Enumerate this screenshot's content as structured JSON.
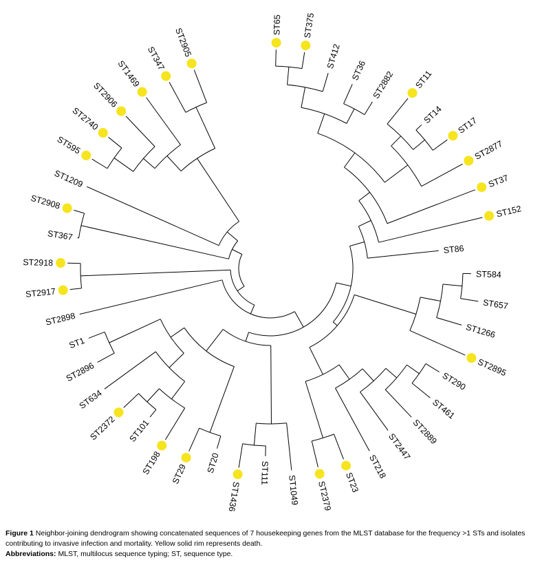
{
  "figure": {
    "caption_label": "Figure 1",
    "caption_text": "Neighbor-joining dendrogram showing concatenated sequences of 7 housekeeping genes from the MLST database for the frequency >1 STs and isolates contributing to invasive infection and mortality. Yellow solid rim represents death.",
    "abbreviations_label": "Abbreviations:",
    "abbreviations_text": "MLST, multilocus sequence typing; ST, sequence type."
  },
  "chart_data": {
    "type": "radial-dendrogram",
    "title": "Neighbor-joining dendrogram of MLST sequence types",
    "legend": {
      "yellow_dot": "death"
    },
    "colors": {
      "death_dot": "#f6e41e",
      "branch": "#000000",
      "label": "#000000"
    },
    "leaf_count": 46,
    "leaves": [
      {
        "label": "ST65",
        "r": 318,
        "death": true
      },
      {
        "label": "ST375",
        "r": 318,
        "death": true
      },
      {
        "label": "ST412",
        "r": 296,
        "death": false
      },
      {
        "label": "ST36",
        "r": 293,
        "death": false
      },
      {
        "label": "ST2882",
        "r": 284,
        "death": false
      },
      {
        "label": "ST11",
        "r": 318,
        "death": true
      },
      {
        "label": "ST14",
        "r": 303,
        "death": false
      },
      {
        "label": "ST17",
        "r": 318,
        "death": true
      },
      {
        "label": "ST2877",
        "r": 318,
        "death": true
      },
      {
        "label": "ST37",
        "r": 319,
        "death": true
      },
      {
        "label": "ST152",
        "r": 317,
        "death": true
      },
      {
        "label": "ST86",
        "r": 246,
        "death": false
      },
      {
        "label": "ST584",
        "r": 292,
        "death": false
      },
      {
        "label": "ST657",
        "r": 306,
        "death": false
      },
      {
        "label": "ST1266",
        "r": 290,
        "death": false
      },
      {
        "label": "ST2895",
        "r": 310,
        "death": true
      },
      {
        "label": "ST290",
        "r": 288,
        "death": false
      },
      {
        "label": "ST461",
        "r": 299,
        "death": false
      },
      {
        "label": "ST2889",
        "r": 298,
        "death": false
      },
      {
        "label": "ST2447",
        "r": 291,
        "death": false
      },
      {
        "label": "ST218",
        "r": 302,
        "death": false
      },
      {
        "label": "ST23",
        "r": 297,
        "death": true
      },
      {
        "label": "ST2379",
        "r": 297,
        "death": true
      },
      {
        "label": "ST1049",
        "r": 295,
        "death": false
      },
      {
        "label": "ST111",
        "r": 273,
        "death": false
      },
      {
        "label": "ST1436",
        "r": 293,
        "death": true
      },
      {
        "label": "ST20",
        "r": 273,
        "death": false
      },
      {
        "label": "ST29",
        "r": 291,
        "death": true
      },
      {
        "label": "ST198",
        "r": 292,
        "death": true
      },
      {
        "label": "ST101",
        "r": 278,
        "death": false
      },
      {
        "label": "ST2372",
        "r": 294,
        "death": true
      },
      {
        "label": "ST634",
        "r": 298,
        "death": false
      },
      {
        "label": "ST2896",
        "r": 286,
        "death": false
      },
      {
        "label": "ST1",
        "r": 283,
        "death": false
      },
      {
        "label": "ST2898",
        "r": 285,
        "death": false
      },
      {
        "label": "ST2917",
        "r": 293,
        "death": true
      },
      {
        "label": "ST2918",
        "r": 295,
        "death": true
      },
      {
        "label": "ST367",
        "r": 284,
        "death": false
      },
      {
        "label": "ST2908",
        "r": 298,
        "death": true
      },
      {
        "label": "ST1209",
        "r": 292,
        "death": false
      },
      {
        "label": "ST595",
        "r": 304,
        "death": true
      },
      {
        "label": "ST2740",
        "r": 303,
        "death": true
      },
      {
        "label": "ST2906",
        "r": 305,
        "death": true
      },
      {
        "label": "ST1469",
        "r": 307,
        "death": true
      },
      {
        "label": "ST347",
        "r": 308,
        "death": true
      },
      {
        "label": "ST2905",
        "r": 309,
        "death": true
      }
    ],
    "tree": {
      "r": 46,
      "children": [
        {
          "r": 58,
          "children": [
            {
              "r": 72,
              "children": [
                {
                  "r": 98,
                  "children": [
                    {
                      "r": 120,
                      "children": [
                        {
                          "r": 142,
                          "children": [
                            {
                              "r": 162,
                              "children": [
                                {
                                  "r": 182,
                                  "children": [
                                    {
                                      "r": 208,
                                      "children": [
                                        {
                                          "r": 238,
                                          "children": [
                                            {
                                              "r": 268,
                                              "children": [
                                                {
                                                  "r": 294,
                                                  "children": [
                                                    {
                                                      "leaf": "ST65"
                                                    },
                                                    {
                                                      "leaf": "ST375"
                                                    }
                                                  ]
                                                },
                                                {
                                                  "leaf": "ST412"
                                                }
                                              ]
                                            },
                                            {
                                              "r": 262,
                                              "children": [
                                                {
                                                  "leaf": "ST36"
                                                },
                                                {
                                                  "leaf": "ST2882"
                                                }
                                              ]
                                            }
                                          ]
                                        },
                                        {
                                          "r": 250,
                                          "children": [
                                            {
                                              "r": 270,
                                              "children": [
                                                {
                                                  "leaf": "ST11"
                                                },
                                                {
                                                  "r": 292,
                                                  "children": [
                                                    {
                                                      "leaf": "ST14"
                                                    },
                                                    {
                                                      "leaf": "ST17"
                                                    }
                                                  ]
                                                }
                                              ]
                                            },
                                            {
                                              "leaf": "ST2877"
                                            }
                                          ]
                                        }
                                      ]
                                    },
                                    {
                                      "leaf": "ST37"
                                    }
                                  ]
                                },
                                {
                                  "leaf": "ST152"
                                }
                              ]
                            },
                            {
                              "leaf": "ST86"
                            }
                          ]
                        },
                        {
                          "r": 128,
                          "children": [
                            {
                              "r": 222,
                              "children": [
                                {
                                  "r": 252,
                                  "children": [
                                    {
                                      "r": 280,
                                      "children": [
                                        {
                                          "leaf": "ST584"
                                        },
                                        {
                                          "leaf": "ST657"
                                        }
                                      ]
                                    },
                                    {
                                      "leaf": "ST1266"
                                    }
                                  ]
                                },
                                {
                                  "leaf": "ST2895"
                                }
                              ]
                            },
                            {
                              "r": 172,
                              "children": [
                                {
                                  "r": 198,
                                  "children": [
                                    {
                                      "r": 222,
                                      "children": [
                                        {
                                          "r": 243,
                                          "children": [
                                            {
                                              "r": 265,
                                              "children": [
                                                {
                                                  "leaf": "ST290"
                                                },
                                                {
                                                  "leaf": "ST461"
                                                }
                                              ]
                                            },
                                            {
                                              "leaf": "ST2889"
                                            }
                                          ]
                                        },
                                        {
                                          "leaf": "ST2447"
                                        }
                                      ]
                                    },
                                    {
                                      "leaf": "ST218"
                                    }
                                  ]
                                },
                                {
                                  "r": 258,
                                  "children": [
                                    {
                                      "leaf": "ST23"
                                    },
                                    {
                                      "leaf": "ST2379"
                                    }
                                  ]
                                }
                              ]
                            }
                          ]
                        }
                      ]
                    },
                    {
                      "r": 112,
                      "children": [
                        {
                          "r": 226,
                          "children": [
                            {
                              "leaf": "ST1049"
                            },
                            {
                              "r": 258,
                              "children": [
                                {
                                  "leaf": "ST111"
                                },
                                {
                                  "leaf": "ST1436"
                                }
                              ]
                            }
                          ]
                        },
                        {
                          "r": 152,
                          "children": [
                            {
                              "r": 254,
                              "children": [
                                {
                                  "leaf": "ST20"
                                },
                                {
                                  "leaf": "ST29"
                                }
                              ]
                            },
                            {
                              "r": 176,
                              "children": [
                                {
                                  "r": 206,
                                  "children": [
                                    {
                                      "r": 238,
                                      "children": [
                                        {
                                          "leaf": "ST198"
                                        },
                                        {
                                          "r": 264,
                                          "children": [
                                            {
                                              "leaf": "ST101"
                                            },
                                            {
                                              "leaf": "ST2372"
                                            }
                                          ]
                                        }
                                      ]
                                    },
                                    {
                                      "leaf": "ST634"
                                    }
                                  ]
                                },
                                {
                                  "r": 258,
                                  "children": [
                                    {
                                      "leaf": "ST2896"
                                    },
                                    {
                                      "leaf": "ST1"
                                    }
                                  ]
                                }
                              ]
                            }
                          ]
                        }
                      ]
                    }
                  ]
                },
                {
                  "leaf": "ST2898"
                }
              ]
            },
            {
              "r": 276,
              "children": [
                {
                  "leaf": "ST2917"
                },
                {
                  "leaf": "ST2918"
                }
              ]
            }
          ]
        },
        {
          "r": 62,
          "children": [
            {
              "r": 282,
              "children": [
                {
                  "leaf": "ST367"
                },
                {
                  "leaf": "ST2908"
                }
              ]
            },
            {
              "r": 82,
              "children": [
                {
                  "leaf": "ST1209"
                },
                {
                  "r": 192,
                  "children": [
                    {
                      "r": 222,
                      "children": [
                        {
                          "r": 244,
                          "children": [
                            {
                              "r": 278,
                              "children": [
                                {
                                  "leaf": "ST595"
                                },
                                {
                                  "leaf": "ST2740"
                                }
                              ]
                            },
                            {
                              "leaf": "ST2906"
                            }
                          ]
                        },
                        {
                          "leaf": "ST1469"
                        }
                      ]
                    },
                    {
                      "r": 258,
                      "children": [
                        {
                          "leaf": "ST347"
                        },
                        {
                          "leaf": "ST2905"
                        }
                      ]
                    }
                  ]
                }
              ]
            }
          ]
        }
      ]
    }
  }
}
